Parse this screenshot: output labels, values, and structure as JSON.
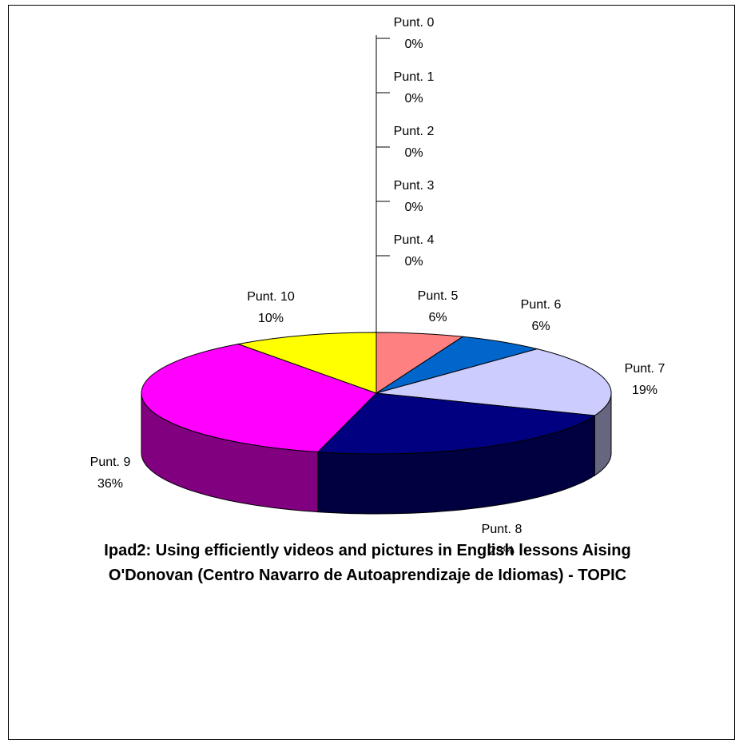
{
  "chart_data": {
    "type": "pie",
    "style": "3d",
    "title": "Ipad2: Using efficiently videos and pictures in English lessons Aising O'Donovan (Centro Navarro de Autoaprendizaje de Idiomas) - TOPIC",
    "slices": [
      {
        "label": "Punt. 0",
        "value": 0,
        "percent_label": "0%",
        "color": "#FF8080",
        "side_color": "#FF8080"
      },
      {
        "label": "Punt. 1",
        "value": 0,
        "percent_label": "0%",
        "color": "#FF8080",
        "side_color": "#FF8080"
      },
      {
        "label": "Punt. 2",
        "value": 0,
        "percent_label": "0%",
        "color": "#FF8080",
        "side_color": "#FF8080"
      },
      {
        "label": "Punt. 3",
        "value": 0,
        "percent_label": "0%",
        "color": "#FF8080",
        "side_color": "#FF8080"
      },
      {
        "label": "Punt. 4",
        "value": 0,
        "percent_label": "0%",
        "color": "#FF8080",
        "side_color": "#FF8080"
      },
      {
        "label": "Punt. 5",
        "value": 6,
        "percent_label": "6%",
        "color": "#FF8080",
        "side_color": "#803F3F"
      },
      {
        "label": "Punt. 6",
        "value": 6,
        "percent_label": "6%",
        "color": "#0066CC",
        "side_color": "#003366"
      },
      {
        "label": "Punt. 7",
        "value": 19,
        "percent_label": "19%",
        "color": "#CCCCFF",
        "side_color": "#666680"
      },
      {
        "label": "Punt. 8",
        "value": 23,
        "percent_label": "23%",
        "color": "#000080",
        "side_color": "#000040"
      },
      {
        "label": "Punt. 9",
        "value": 36,
        "percent_label": "36%",
        "color": "#FF00FF",
        "side_color": "#800080"
      },
      {
        "label": "Punt. 10",
        "value": 10,
        "percent_label": "10%",
        "color": "#FFFF00",
        "side_color": "#808000"
      }
    ]
  }
}
